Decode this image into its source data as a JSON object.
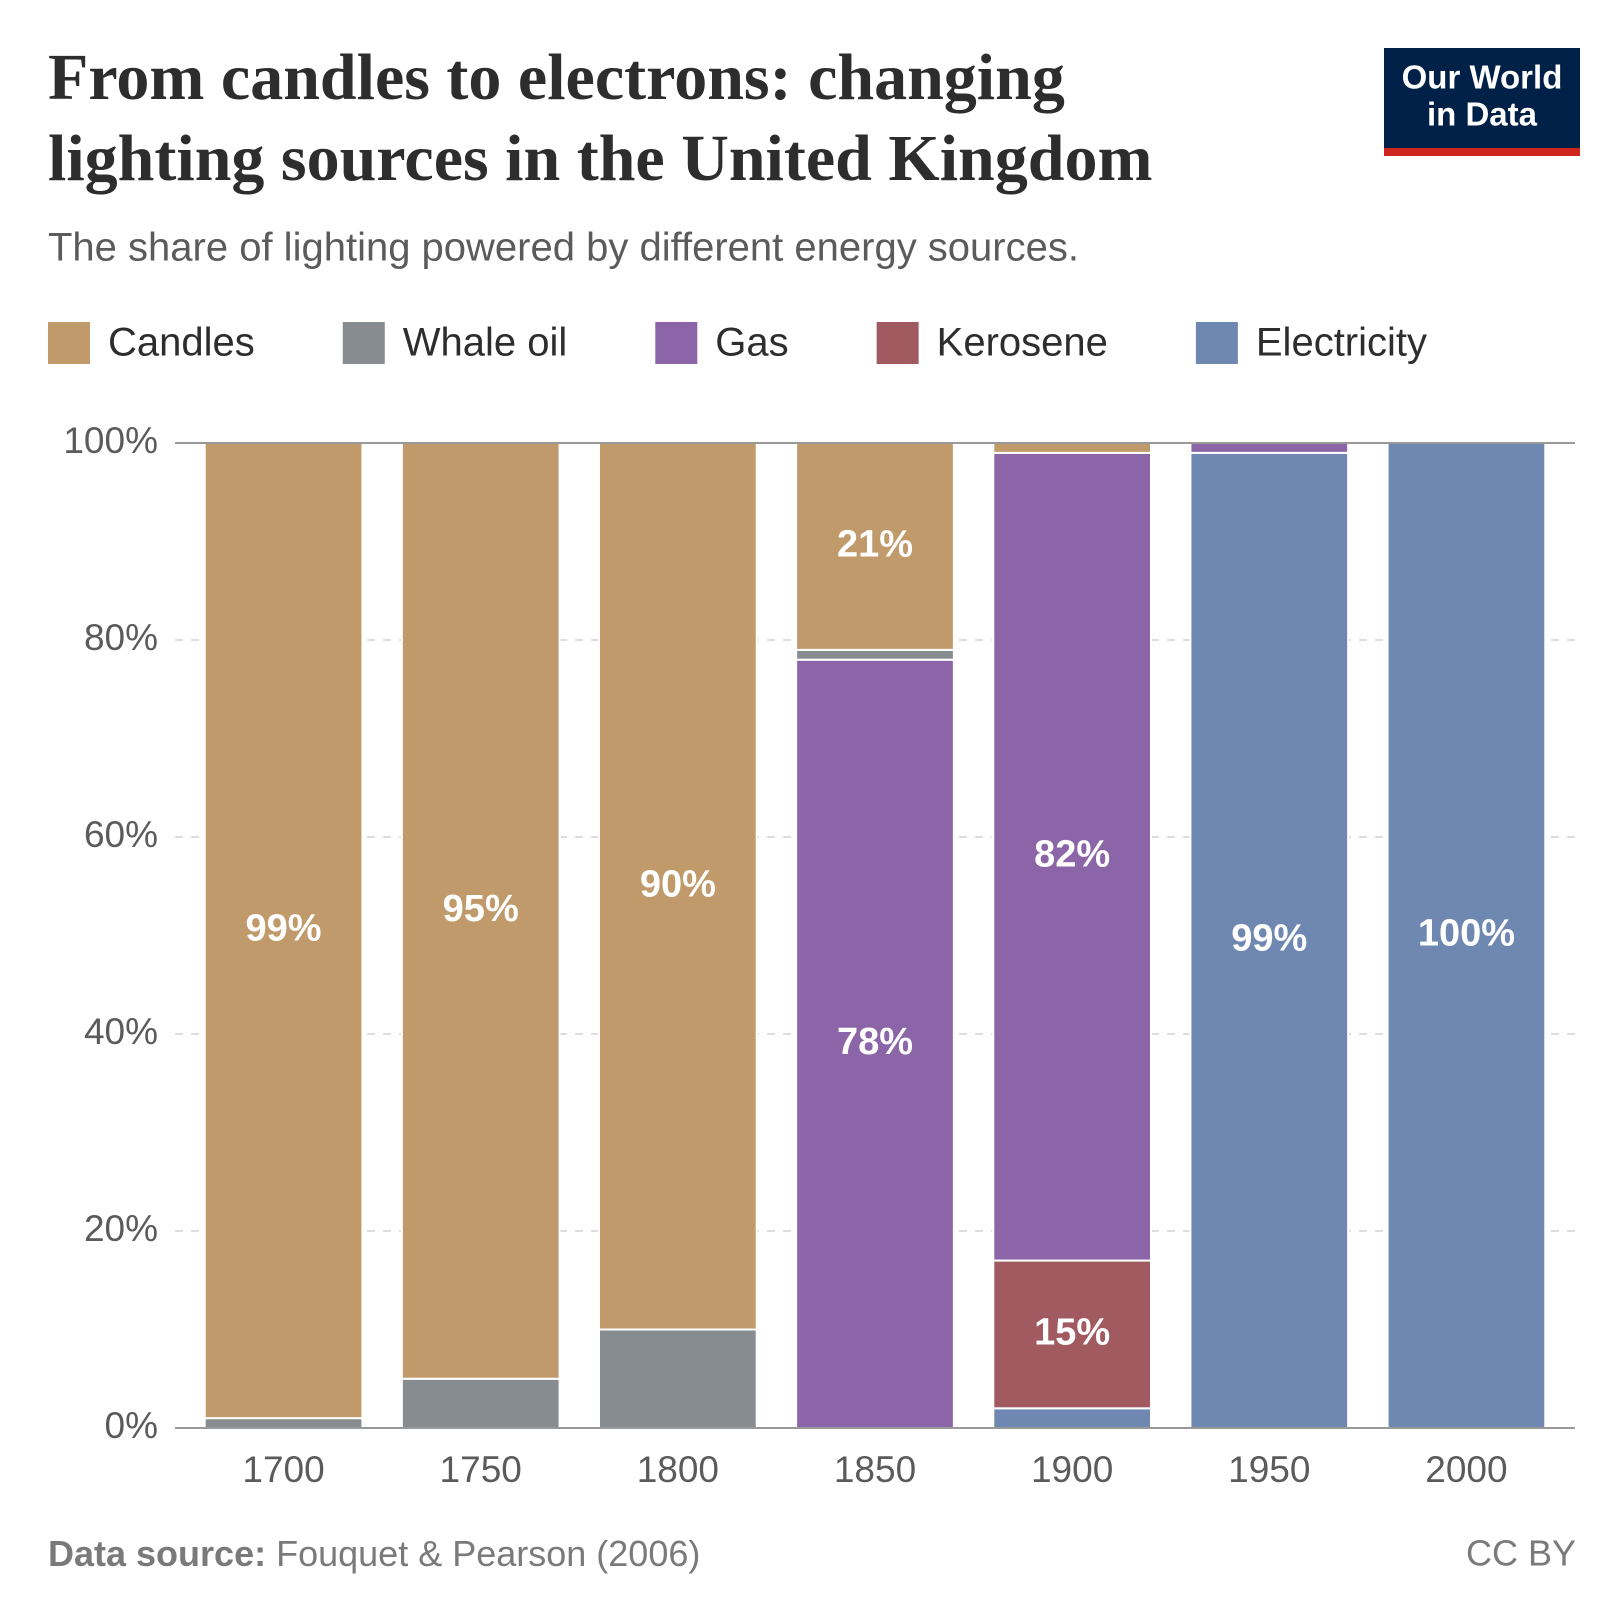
{
  "logo": [
    "Our World",
    "in Data"
  ],
  "chart_data": {
    "type": "stacked-bar",
    "title": [
      "From candles to electrons: changing",
      "lighting sources in the United Kingdom"
    ],
    "subtitle": "The share of lighting powered by different energy sources.",
    "source_label": "Data source:",
    "source": "Fouquet & Pearson (2006)",
    "license": "CC BY",
    "categories": [
      "1700",
      "1750",
      "1800",
      "1850",
      "1900",
      "1950",
      "2000"
    ],
    "series": [
      {
        "name": "Electricity",
        "color": "#6f88b1",
        "values": [
          0,
          0,
          0,
          0,
          2,
          99,
          100
        ],
        "value_labels": [
          null,
          null,
          null,
          null,
          null,
          "99%",
          "100%"
        ]
      },
      {
        "name": "Kerosene",
        "color": "#a15a60",
        "values": [
          0,
          0,
          0,
          0,
          15,
          0,
          0
        ],
        "value_labels": [
          null,
          null,
          null,
          null,
          "15%",
          null,
          null
        ]
      },
      {
        "name": "Gas",
        "color": "#8b65a8",
        "values": [
          0,
          0,
          0,
          78,
          82,
          1,
          0
        ],
        "value_labels": [
          null,
          null,
          null,
          "78%",
          "82%",
          null,
          null
        ]
      },
      {
        "name": "Whale oil",
        "color": "#878c91",
        "values": [
          1,
          5,
          10,
          1,
          0,
          0,
          0
        ]
      },
      {
        "name": "Candles",
        "color": "#c09a6a",
        "values": [
          99,
          95,
          90,
          21,
          1,
          0,
          0
        ],
        "value_labels": [
          "99%",
          "95%",
          "90%",
          "21%",
          null,
          null,
          null
        ]
      }
    ],
    "legend_order": [
      "Candles",
      "Whale oil",
      "Gas",
      "Kerosene",
      "Electricity"
    ],
    "ylim": [
      0,
      100
    ],
    "yticks": [
      {
        "value": 0,
        "label": "0%"
      },
      {
        "value": 20,
        "label": "20%"
      },
      {
        "value": 40,
        "label": "40%"
      },
      {
        "value": 60,
        "label": "60%"
      },
      {
        "value": 80,
        "label": "80%"
      },
      {
        "value": 100,
        "label": "100%"
      }
    ],
    "grid": true
  }
}
